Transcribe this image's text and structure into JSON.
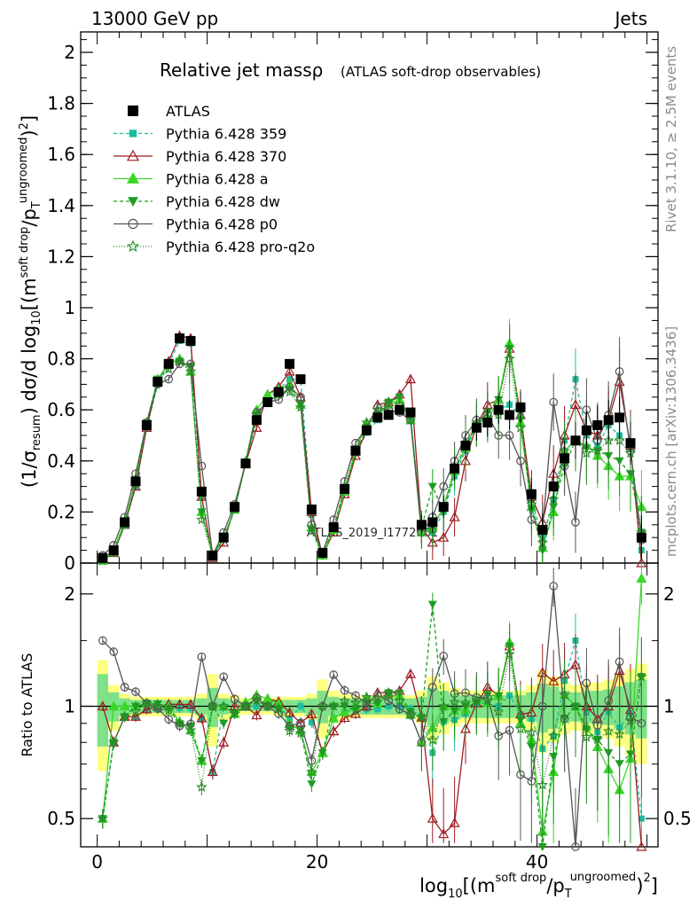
{
  "header": {
    "left": "13000 GeV pp",
    "right": "Jets"
  },
  "side_labels": {
    "rivet": "Rivet 3.1.10, ≥ 2.5M events",
    "mcplots": "mcplots.cern.ch [arXiv:1306.3436]"
  },
  "watermark": "ATLAS_2019_I1772062",
  "chart_data": {
    "type": "line",
    "title": "Relative jet massρ",
    "subtitle": "(ATLAS soft-drop observables)",
    "xlabel": "log10[(m^{soft drop}/p_T^{ungroomed})^2]",
    "ylabel": "(1/σ_resum) dσ/d log10[(m^{soft drop}/p_T^{ungroomed})^2]",
    "ratio_ylabel": "Ratio to ATLAS",
    "xlim": [
      -1.5,
      51
    ],
    "ylim": [
      0,
      2.08
    ],
    "ratio_ylim": [
      0.42,
      2.42
    ],
    "ratio_scale": "log",
    "x_ticks": [
      "0",
      "20",
      "40"
    ],
    "y_ticks": [
      "0",
      "0.2",
      "0.4",
      "0.6",
      "0.8",
      "1",
      "1.2",
      "1.4",
      "1.6",
      "1.8",
      "2"
    ],
    "ratio_ticks": [
      "0.5",
      "1",
      "2"
    ],
    "legend_position": "top-left",
    "x": [
      0.5,
      1.5,
      2.5,
      3.5,
      4.5,
      5.5,
      6.5,
      7.5,
      8.5,
      9.5,
      10.5,
      11.5,
      12.5,
      13.5,
      14.5,
      15.5,
      16.5,
      17.5,
      18.5,
      19.5,
      20.5,
      21.5,
      22.5,
      23.5,
      24.5,
      25.5,
      26.5,
      27.5,
      28.5,
      29.5,
      30.5,
      31.5,
      32.5,
      33.5,
      34.5,
      35.5,
      36.5,
      37.5,
      38.5,
      39.5,
      40.5,
      41.5,
      42.5,
      43.5,
      44.5,
      45.5,
      46.5,
      47.5,
      48.5,
      49.5
    ],
    "series": [
      {
        "name": "ATLAS",
        "color": "#000000",
        "marker": "square",
        "dash": "none",
        "values": [
          0.02,
          0.05,
          0.16,
          0.32,
          0.54,
          0.71,
          0.78,
          0.88,
          0.87,
          0.28,
          0.03,
          0.1,
          0.22,
          0.39,
          0.56,
          0.63,
          0.67,
          0.78,
          0.72,
          0.21,
          0.04,
          0.14,
          0.29,
          0.44,
          0.52,
          0.57,
          0.58,
          0.6,
          0.59,
          0.15,
          0.16,
          0.22,
          0.37,
          0.46,
          0.53,
          0.55,
          0.6,
          0.58,
          0.61,
          0.27,
          0.13,
          0.3,
          0.41,
          0.48,
          0.52,
          0.54,
          0.56,
          0.57,
          0.47,
          0.1
        ]
      },
      {
        "name": "Pythia 6.428 359",
        "color": "#1cbf9d",
        "marker": "square-small",
        "dash": "4,3",
        "values": [
          0.01,
          0.04,
          0.15,
          0.3,
          0.53,
          0.7,
          0.78,
          0.87,
          0.86,
          0.26,
          0.02,
          0.1,
          0.21,
          0.39,
          0.56,
          0.64,
          0.68,
          0.72,
          0.72,
          0.19,
          0.03,
          0.13,
          0.28,
          0.43,
          0.51,
          0.56,
          0.58,
          0.6,
          0.58,
          0.14,
          0.12,
          0.2,
          0.34,
          0.44,
          0.54,
          0.56,
          0.6,
          0.62,
          0.58,
          0.25,
          0.1,
          0.25,
          0.48,
          0.72,
          0.5,
          0.46,
          0.54,
          0.5,
          0.45,
          0.05
        ]
      },
      {
        "name": "Pythia 6.428 370",
        "color": "#9c1c22",
        "marker": "triangle-open",
        "dash": "none",
        "values": [
          0.02,
          0.04,
          0.15,
          0.3,
          0.53,
          0.71,
          0.79,
          0.89,
          0.88,
          0.26,
          0.02,
          0.08,
          0.22,
          0.39,
          0.53,
          0.66,
          0.69,
          0.75,
          0.65,
          0.2,
          0.03,
          0.12,
          0.27,
          0.42,
          0.52,
          0.62,
          0.63,
          0.66,
          0.72,
          0.14,
          0.08,
          0.1,
          0.18,
          0.4,
          0.54,
          0.62,
          0.64,
          0.84,
          0.58,
          0.26,
          0.16,
          0.35,
          0.5,
          0.62,
          0.52,
          0.5,
          0.56,
          0.71,
          0.46,
          0.0
        ]
      },
      {
        "name": "Pythia 6.428 a",
        "color": "#3ad629",
        "marker": "triangle",
        "dash": "none",
        "values": [
          0.01,
          0.05,
          0.16,
          0.32,
          0.55,
          0.72,
          0.78,
          0.8,
          0.75,
          0.2,
          0.03,
          0.1,
          0.21,
          0.4,
          0.6,
          0.66,
          0.68,
          0.7,
          0.62,
          0.14,
          0.03,
          0.13,
          0.28,
          0.44,
          0.55,
          0.58,
          0.62,
          0.64,
          0.56,
          0.12,
          0.14,
          0.22,
          0.36,
          0.45,
          0.55,
          0.56,
          0.64,
          0.86,
          0.55,
          0.22,
          0.06,
          0.2,
          0.44,
          0.48,
          0.46,
          0.42,
          0.38,
          0.34,
          0.34,
          0.22
        ]
      },
      {
        "name": "Pythia 6.428 dw",
        "color": "#1d9e22",
        "marker": "triangle-down",
        "dash": "4,3",
        "values": [
          0.01,
          0.04,
          0.15,
          0.32,
          0.55,
          0.72,
          0.77,
          0.79,
          0.77,
          0.2,
          0.03,
          0.09,
          0.21,
          0.39,
          0.58,
          0.63,
          0.66,
          0.68,
          0.62,
          0.13,
          0.03,
          0.14,
          0.29,
          0.43,
          0.53,
          0.58,
          0.63,
          0.65,
          0.57,
          0.14,
          0.3,
          0.2,
          0.36,
          0.46,
          0.54,
          0.59,
          0.64,
          0.84,
          0.56,
          0.21,
          0.05,
          0.22,
          0.38,
          0.48,
          0.45,
          0.44,
          0.42,
          0.4,
          0.35,
          0.12
        ]
      },
      {
        "name": "Pythia 6.428 p0",
        "color": "#555555",
        "marker": "circle-open",
        "dash": "none",
        "values": [
          0.03,
          0.07,
          0.18,
          0.35,
          0.55,
          0.7,
          0.72,
          0.78,
          0.78,
          0.38,
          0.03,
          0.12,
          0.23,
          0.39,
          0.59,
          0.63,
          0.64,
          0.69,
          0.65,
          0.15,
          0.04,
          0.17,
          0.32,
          0.47,
          0.53,
          0.61,
          0.6,
          0.59,
          0.56,
          0.12,
          0.18,
          0.3,
          0.4,
          0.5,
          0.56,
          0.58,
          0.5,
          0.5,
          0.4,
          0.17,
          0.13,
          0.63,
          0.38,
          0.16,
          0.6,
          0.48,
          0.58,
          0.75,
          0.44,
          0.09
        ]
      },
      {
        "name": "Pythia 6.428 pro-q2o",
        "color": "#2a8a2a",
        "marker": "star",
        "dash": "1,2",
        "values": [
          0.01,
          0.04,
          0.15,
          0.31,
          0.55,
          0.71,
          0.76,
          0.79,
          0.75,
          0.17,
          0.03,
          0.1,
          0.21,
          0.39,
          0.58,
          0.63,
          0.66,
          0.67,
          0.61,
          0.14,
          0.04,
          0.14,
          0.3,
          0.45,
          0.55,
          0.6,
          0.63,
          0.62,
          0.56,
          0.14,
          0.13,
          0.22,
          0.38,
          0.47,
          0.55,
          0.57,
          0.58,
          0.8,
          0.53,
          0.23,
          0.08,
          0.25,
          0.44,
          0.48,
          0.43,
          0.44,
          0.48,
          0.48,
          0.43,
          0.12
        ]
      }
    ],
    "band_yellow_halfwidth": [
      0.33,
      0.14,
      0.08,
      0.06,
      0.06,
      0.06,
      0.06,
      0.06,
      0.06,
      0.08,
      0.22,
      0.08,
      0.07,
      0.05,
      0.05,
      0.05,
      0.06,
      0.06,
      0.06,
      0.08,
      0.18,
      0.1,
      0.08,
      0.07,
      0.07,
      0.07,
      0.07,
      0.07,
      0.07,
      0.1,
      0.2,
      0.16,
      0.12,
      0.1,
      0.1,
      0.1,
      0.1,
      0.1,
      0.1,
      0.14,
      0.25,
      0.2,
      0.16,
      0.14,
      0.16,
      0.16,
      0.18,
      0.22,
      0.26,
      0.3
    ],
    "band_green_halfwidth": [
      0.22,
      0.09,
      0.05,
      0.04,
      0.04,
      0.04,
      0.04,
      0.04,
      0.04,
      0.05,
      0.12,
      0.05,
      0.04,
      0.03,
      0.03,
      0.03,
      0.04,
      0.04,
      0.04,
      0.05,
      0.1,
      0.06,
      0.05,
      0.05,
      0.05,
      0.05,
      0.05,
      0.05,
      0.05,
      0.06,
      0.12,
      0.1,
      0.08,
      0.07,
      0.07,
      0.07,
      0.07,
      0.07,
      0.07,
      0.09,
      0.15,
      0.13,
      0.1,
      0.09,
      0.1,
      0.1,
      0.11,
      0.13,
      0.16,
      0.18
    ]
  }
}
